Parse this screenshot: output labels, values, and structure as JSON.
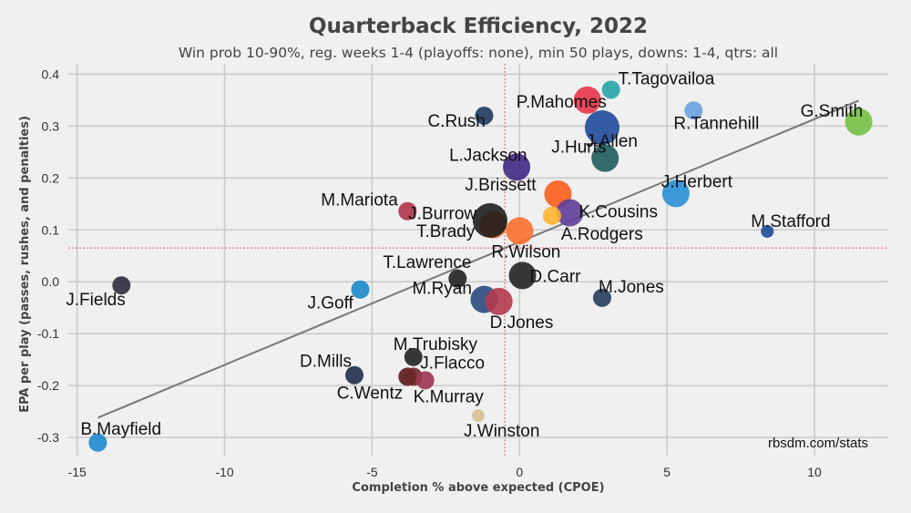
{
  "chart_data": {
    "type": "scatter",
    "title": "Quarterback Efficiency, 2022",
    "subtitle": "Win prob 10-90%, reg. weeks 1-4 (playoffs: none), min 50 plays, downs: 1-4, qtrs: all",
    "xlabel": "Completion % above expected (CPOE)",
    "ylabel": "EPA per play (passes, rushes, and penalties)",
    "xlim": [
      -15.3,
      12.5
    ],
    "ylim": [
      -0.335,
      0.42
    ],
    "xticks": [
      -15,
      -10,
      -5,
      0,
      5,
      10
    ],
    "yticks": [
      -0.3,
      -0.2,
      -0.1,
      0.0,
      0.1,
      0.2,
      0.3,
      0.4
    ],
    "xtick_labels": [
      "-15",
      "-10",
      "-5",
      "0",
      "5",
      "10"
    ],
    "ytick_labels": [
      "-0.3",
      "-0.2",
      "-0.1",
      "0.0",
      "0.1",
      "0.2",
      "0.3",
      "0.4"
    ],
    "grid": true,
    "mean_x": -0.5,
    "mean_y": 0.065,
    "trend_line": {
      "x": [
        -14.3,
        11.5
      ],
      "y": [
        -0.262,
        0.349
      ]
    },
    "credit": "rbsdm.com/stats",
    "points": [
      {
        "name": "T.Tagovailoa",
        "x": 3.1,
        "y": 0.37,
        "size": "small",
        "color": "#27a3a8"
      },
      {
        "name": "P.Mahomes",
        "x": 2.3,
        "y": 0.35,
        "size": "medium",
        "color": "#e8354a"
      },
      {
        "name": "C.Rush",
        "x": -1.2,
        "y": 0.32,
        "size": "small",
        "color": "#1e3a5f"
      },
      {
        "name": "R.Tannehill",
        "x": 5.9,
        "y": 0.33,
        "size": "small",
        "color": "#6aa2e0"
      },
      {
        "name": "G.Smith",
        "x": 11.5,
        "y": 0.308,
        "size": "medium",
        "color": "#76c043"
      },
      {
        "name": "J.Allen",
        "x": 2.8,
        "y": 0.297,
        "size": "large",
        "color": "#1f4b9a"
      },
      {
        "name": "L.Jackson",
        "x": -0.1,
        "y": 0.221,
        "size": "medium",
        "color": "#3f2a84"
      },
      {
        "name": "J.Hurts",
        "x": 2.9,
        "y": 0.238,
        "size": "medium",
        "color": "#1f5c5c"
      },
      {
        "name": "J.Brissett",
        "x": 1.3,
        "y": 0.169,
        "size": "medium",
        "color": "#fb5e1c"
      },
      {
        "name": "J.Herbert",
        "x": 5.3,
        "y": 0.17,
        "size": "medium",
        "color": "#2a8fd6"
      },
      {
        "name": "M.Mariota",
        "x": -3.8,
        "y": 0.136,
        "size": "small",
        "color": "#b0334a"
      },
      {
        "name": "K.Cousins",
        "x": 1.7,
        "y": 0.133,
        "size": "medium",
        "color": "#5d3d99"
      },
      {
        "name": "J.Burrow",
        "x": -0.9,
        "y": 0.11,
        "size": "medium",
        "color": "#f05a23"
      },
      {
        "name": "A.Rodgers",
        "x": 1.1,
        "y": 0.127,
        "size": "small",
        "color": "#ffb52e"
      },
      {
        "name": "T.Brady",
        "x": -1.0,
        "y": 0.118,
        "size": "large",
        "color": "#1e1e1e"
      },
      {
        "name": "M.Stafford",
        "x": 8.4,
        "y": 0.097,
        "size": "xsmall",
        "color": "#1f4b9a"
      },
      {
        "name": "R.Wilson",
        "x": 0.0,
        "y": 0.098,
        "size": "medium",
        "color": "#fb6f2c"
      },
      {
        "name": "T.Lawrence",
        "x": -2.1,
        "y": 0.006,
        "size": "small",
        "color": "#222"
      },
      {
        "name": "D.Carr",
        "x": 0.1,
        "y": 0.012,
        "size": "medium",
        "color": "#222"
      },
      {
        "name": "J.Fields",
        "x": -13.5,
        "y": -0.007,
        "size": "small",
        "color": "#2b2b3b"
      },
      {
        "name": "J.Goff",
        "x": -5.4,
        "y": -0.015,
        "size": "small",
        "color": "#1c87c9"
      },
      {
        "name": "M.Jones",
        "x": 2.8,
        "y": -0.031,
        "size": "small",
        "color": "#233c5b"
      },
      {
        "name": "M.Ryan",
        "x": -1.2,
        "y": -0.034,
        "size": "medium",
        "color": "#2b4a80"
      },
      {
        "name": "D.Jones",
        "x": -0.7,
        "y": -0.038,
        "size": "medium",
        "color": "#b23a4d"
      },
      {
        "name": "M.Trubisky",
        "x": -3.6,
        "y": -0.145,
        "size": "small",
        "color": "#222"
      },
      {
        "name": "D.Mills",
        "x": -5.6,
        "y": -0.18,
        "size": "small",
        "color": "#1f2e4a"
      },
      {
        "name": "J.Flacco",
        "x": -3.8,
        "y": -0.183,
        "size": "small",
        "color": "#5a1a1a"
      },
      {
        "name": "C.Wentz",
        "x": -3.6,
        "y": -0.183,
        "size": "small",
        "color": "#6b2a2a"
      },
      {
        "name": "K.Murray",
        "x": -3.2,
        "y": -0.19,
        "size": "small",
        "color": "#9c3552"
      },
      {
        "name": "J.Winston",
        "x": -1.4,
        "y": -0.258,
        "size": "xsmall",
        "color": "#d6bf92"
      },
      {
        "name": "B.Mayfield",
        "x": -14.3,
        "y": -0.31,
        "size": "small",
        "color": "#1e88cf"
      }
    ]
  }
}
